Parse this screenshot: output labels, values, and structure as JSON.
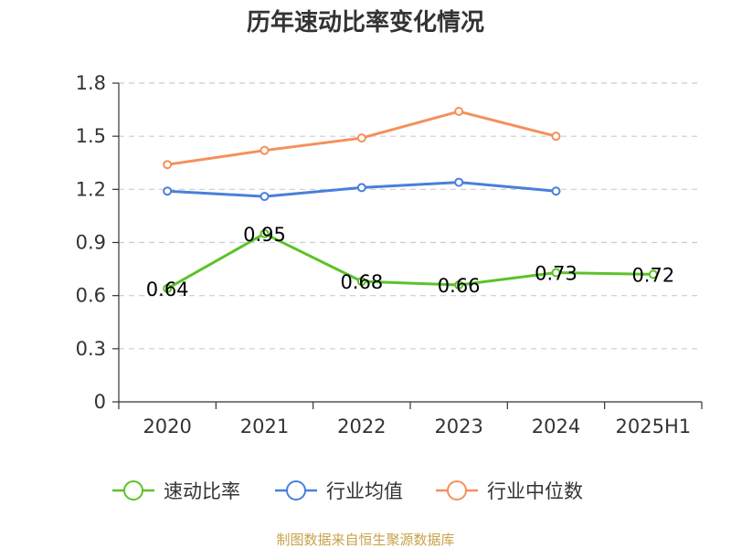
{
  "chart_data": {
    "type": "line",
    "title": "历年速动比率变化情况",
    "categories": [
      "2020",
      "2021",
      "2022",
      "2023",
      "2024",
      "2025H1"
    ],
    "ylim": [
      0,
      1.8
    ],
    "yticks": [
      "0",
      "0.3",
      "0.6",
      "0.9",
      "1.2",
      "1.5",
      "1.8"
    ],
    "ytick_values": [
      0,
      0.3,
      0.6,
      0.9,
      1.2,
      1.5,
      1.8
    ],
    "grid": true,
    "legend_position": "bottom",
    "series": [
      {
        "name": "速动比率",
        "color": "#5cc22a",
        "values": [
          0.64,
          0.95,
          0.68,
          0.66,
          0.73,
          0.72
        ],
        "labels": [
          "0.64",
          "0.95",
          "0.68",
          "0.66",
          "0.73",
          "0.72"
        ],
        "show_labels": true
      },
      {
        "name": "行业均值",
        "color": "#4a7fdb",
        "values": [
          1.19,
          1.16,
          1.21,
          1.24,
          1.19,
          null
        ],
        "show_labels": false
      },
      {
        "name": "行业中位数",
        "color": "#f5905a",
        "values": [
          1.34,
          1.42,
          1.49,
          1.64,
          1.5,
          null
        ],
        "show_labels": false
      }
    ],
    "source": "制图数据来自恒生聚源数据库"
  }
}
